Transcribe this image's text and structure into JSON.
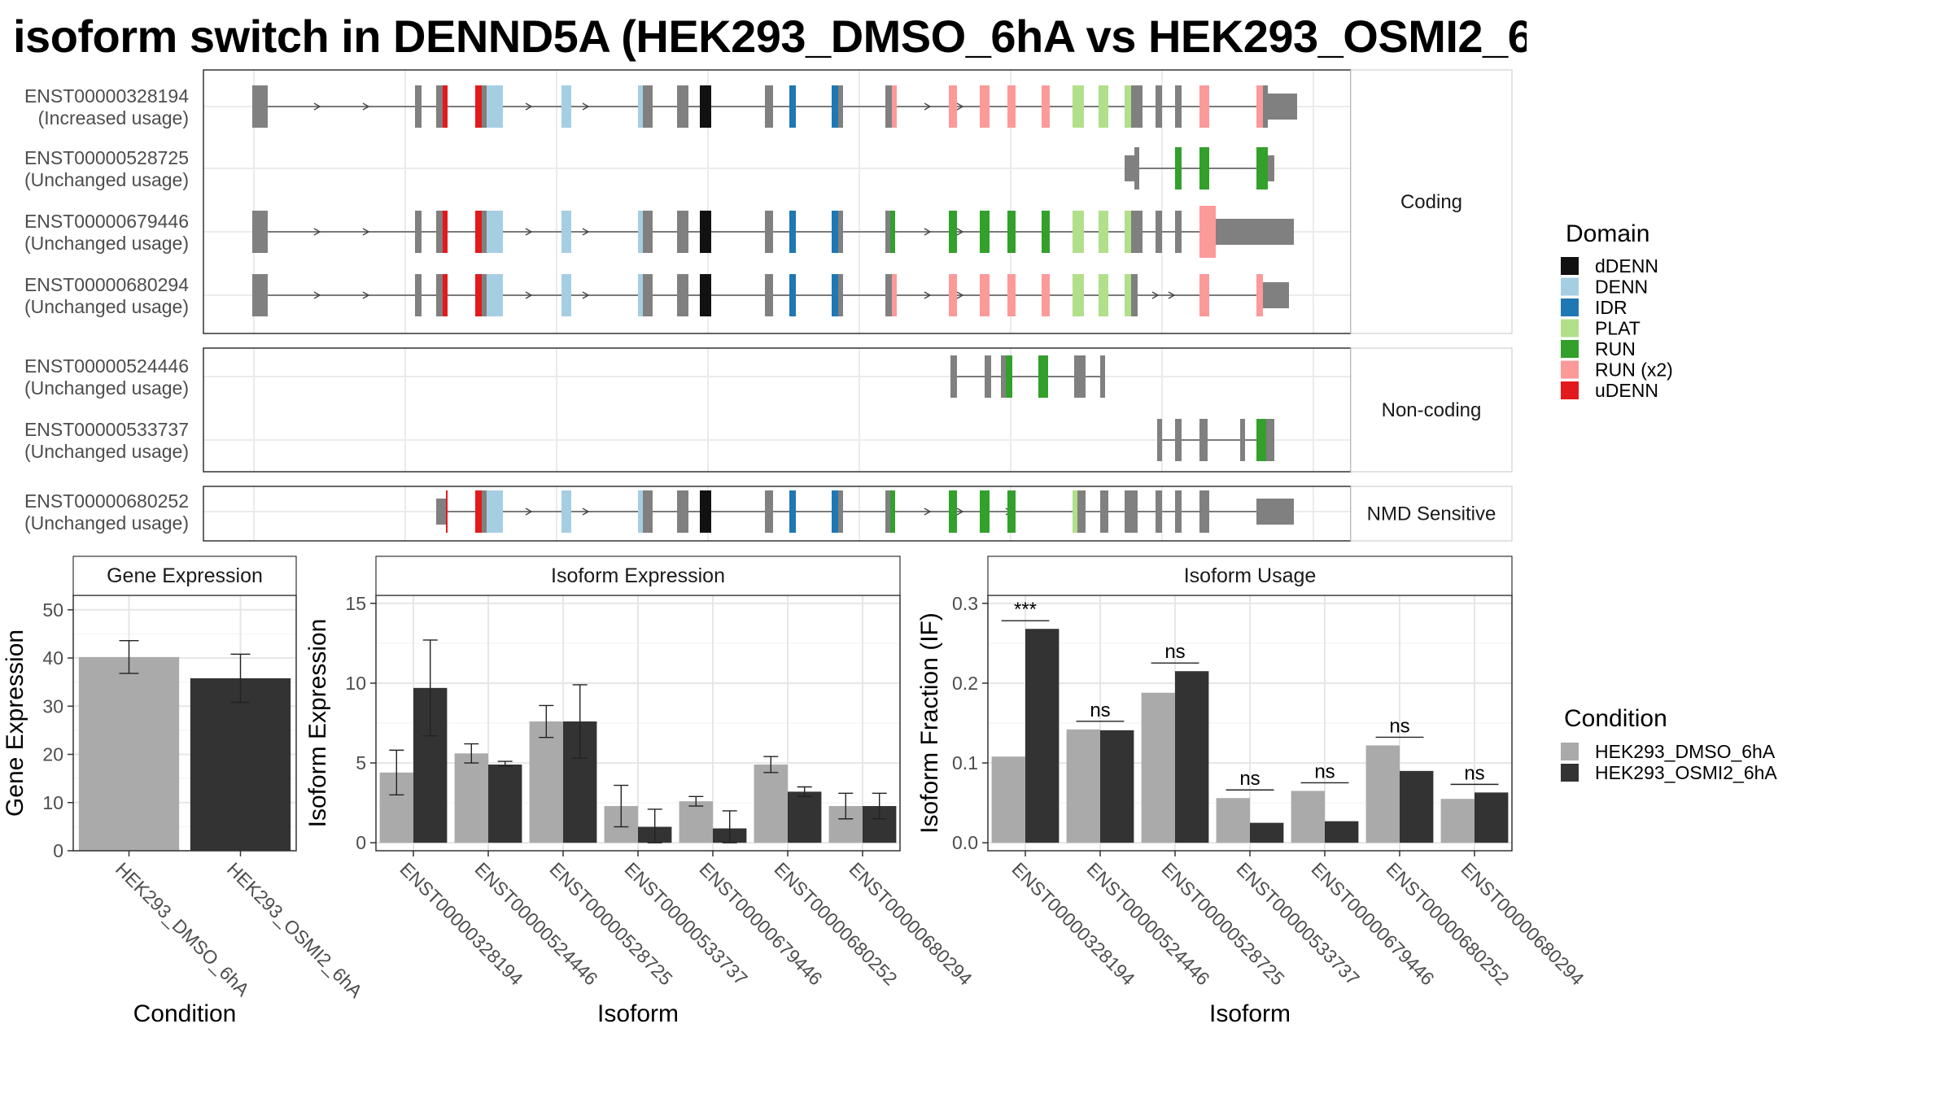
{
  "title": "isoform switch in DENND5A (HEK293_DMSO_6hA vs HEK293_OSMI2_6",
  "colors": {
    "dDENN": "#111111",
    "DENN": "#a6cee3",
    "IDR": "#1f78b4",
    "PLAT": "#b2df8a",
    "RUN": "#33a02c",
    "RUN (x2)": "#fb9a99",
    "uDENN": "#e31a1c",
    "exon": "#808080",
    "DMSO": "#aaaaaa",
    "OSMI2": "#333333"
  },
  "structure": {
    "panels": [
      {
        "label": "Coding",
        "transcripts": [
          {
            "id": "ENST00000328194",
            "usage": "(Increased usage)"
          },
          {
            "id": "ENST00000528725",
            "usage": "(Unchanged usage)"
          },
          {
            "id": "ENST00000679446",
            "usage": "(Unchanged usage)"
          },
          {
            "id": "ENST00000680294",
            "usage": "(Unchanged usage)"
          }
        ]
      },
      {
        "label": "Non-coding",
        "transcripts": [
          {
            "id": "ENST00000524446",
            "usage": "(Unchanged usage)"
          },
          {
            "id": "ENST00000533737",
            "usage": "(Unchanged usage)"
          }
        ]
      },
      {
        "label": "NMD Sensitive",
        "transcripts": [
          {
            "id": "ENST00000680252",
            "usage": "(Unchanged usage)"
          }
        ]
      }
    ]
  },
  "legend_domain": {
    "title": "Domain",
    "items": [
      "dDENN",
      "DENN",
      "IDR",
      "PLAT",
      "RUN",
      "RUN (x2)",
      "uDENN"
    ]
  },
  "legend_condition": {
    "title": "Condition",
    "items": [
      "HEK293_DMSO_6hA",
      "HEK293_OSMI2_6hA"
    ]
  },
  "chart_data": [
    {
      "type": "bar",
      "title": "Gene Expression",
      "xlabel": "Condition",
      "ylabel": "Gene Expression",
      "ylim": [
        0,
        53
      ],
      "yticks": [
        0,
        10,
        20,
        30,
        40,
        50
      ],
      "categories": [
        "HEK293_DMSO_6hA",
        "HEK293_OSMI2_6hA"
      ],
      "values": [
        40.2,
        35.8
      ],
      "err_low": [
        36.8,
        30.8
      ],
      "err_high": [
        43.6,
        40.8
      ]
    },
    {
      "type": "bar",
      "title": "Isoform Expression",
      "xlabel": "Isoform",
      "ylabel": "Isoform Expression",
      "ylim": [
        -0.5,
        15.5
      ],
      "yticks": [
        0,
        5,
        10,
        15
      ],
      "categories": [
        "ENST00000328194",
        "ENST00000524446",
        "ENST00000528725",
        "ENST00000533737",
        "ENST00000679446",
        "ENST00000680252",
        "ENST00000680294"
      ],
      "series": [
        {
          "name": "HEK293_DMSO_6hA",
          "values": [
            4.4,
            5.6,
            7.6,
            2.3,
            2.6,
            4.9,
            2.3
          ],
          "err_low": [
            3.0,
            5.0,
            6.6,
            1.0,
            2.3,
            4.4,
            1.5
          ],
          "err_high": [
            5.8,
            6.2,
            8.6,
            3.6,
            2.9,
            5.4,
            3.1
          ]
        },
        {
          "name": "HEK293_OSMI2_6hA",
          "values": [
            9.7,
            4.9,
            7.6,
            1.0,
            0.9,
            3.2,
            2.3
          ],
          "err_low": [
            6.7,
            4.8,
            5.3,
            0.0,
            0.0,
            2.9,
            1.5
          ],
          "err_high": [
            12.7,
            5.1,
            9.9,
            2.1,
            2.0,
            3.5,
            3.1
          ]
        }
      ]
    },
    {
      "type": "bar",
      "title": "Isoform Usage",
      "xlabel": "Isoform",
      "ylabel": "Isoform Fraction (IF)",
      "ylim": [
        -0.01,
        0.31
      ],
      "yticks": [
        0.0,
        0.1,
        0.2,
        0.3
      ],
      "categories": [
        "ENST00000328194",
        "ENST00000524446",
        "ENST00000528725",
        "ENST00000533737",
        "ENST00000679446",
        "ENST00000680252",
        "ENST00000680294"
      ],
      "series": [
        {
          "name": "HEK293_DMSO_6hA",
          "values": [
            0.108,
            0.142,
            0.188,
            0.056,
            0.065,
            0.122,
            0.055
          ]
        },
        {
          "name": "HEK293_OSMI2_6hA",
          "values": [
            0.268,
            0.141,
            0.215,
            0.025,
            0.027,
            0.09,
            0.063
          ]
        }
      ],
      "significance": [
        "***",
        "ns",
        "ns",
        "ns",
        "ns",
        "ns",
        "ns"
      ]
    }
  ]
}
